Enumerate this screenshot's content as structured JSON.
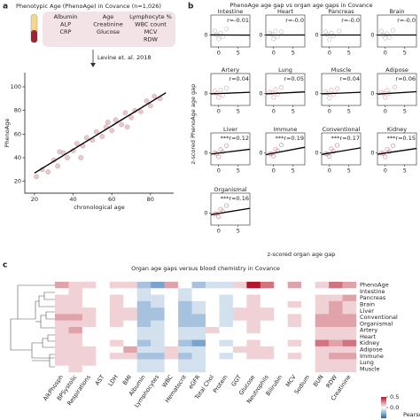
{
  "chart_data": [
    {
      "type": "scatter",
      "panel": "a",
      "title": "Phenotypic Age (PhenoAge) in Covance (n=1,026)",
      "inputs": [
        [
          "Albumin",
          "ALP",
          "CRP"
        ],
        [
          "Age",
          "Creatinine",
          "Glucose"
        ],
        [
          "Lymphocyte %",
          "WBC count",
          "MCV",
          "RDW"
        ]
      ],
      "method": "Levine et. al. 2018",
      "xlabel": "chronological age",
      "ylabel": "PhenoAge",
      "xlim": [
        15,
        92
      ],
      "ylim": [
        10,
        112
      ],
      "xticks": [
        20,
        40,
        60,
        80
      ],
      "yticks": [
        20,
        40,
        60,
        80,
        100
      ],
      "color": "#d9a5aa",
      "x": [
        21,
        24,
        27,
        30,
        32,
        35,
        37,
        40,
        42,
        45,
        47,
        50,
        52,
        55,
        57,
        60,
        62,
        65,
        67,
        70,
        72,
        75,
        78,
        80,
        82,
        85,
        33,
        44,
        58,
        68
      ],
      "y": [
        24,
        30,
        28,
        38,
        33,
        44,
        40,
        46,
        52,
        50,
        57,
        55,
        62,
        58,
        66,
        63,
        72,
        68,
        78,
        74,
        80,
        79,
        88,
        84,
        92,
        90,
        45,
        40,
        70,
        66
      ],
      "fit": {
        "x": [
          20,
          88
        ],
        "y": [
          27,
          95
        ]
      }
    },
    {
      "type": "scatter_grid",
      "panel": "b",
      "title": "PhenoAge age gap vs organ age gaps in Covance",
      "xlabel": "z-scored organ age gap",
      "ylabel": "z-scored PhenoAge age gap",
      "xlim": [
        -2,
        8
      ],
      "ylim": [
        -3,
        5
      ],
      "xticks": [
        0,
        5
      ],
      "yticks": [
        0
      ],
      "panels": [
        {
          "name": "Intestine",
          "r": "r=-0.01",
          "color": "#bbbbbb",
          "x": [
            -1,
            0,
            0.5,
            1,
            2,
            -0.5
          ],
          "y": [
            1,
            -1,
            0.5,
            -0.5,
            1.5,
            0
          ],
          "fit": [
            0.01,
            -0.02
          ]
        },
        {
          "name": "Heart",
          "r": "r=-0.0",
          "color": "#bbbbbb",
          "x": [
            -1,
            0,
            0.5,
            1,
            2,
            -0.5
          ],
          "y": [
            0.5,
            -1,
            1,
            -0.5,
            0.8,
            0.2
          ],
          "fit": [
            0,
            0
          ]
        },
        {
          "name": "Pancreas",
          "r": "r=-0.0",
          "color": "#bbbbbb",
          "x": [
            -1,
            0,
            0.5,
            1,
            2.5,
            -0.5
          ],
          "y": [
            0.8,
            -1.2,
            0.5,
            -0.3,
            1,
            0.1
          ],
          "fit": [
            0,
            0
          ]
        },
        {
          "name": "Brain",
          "r": "r=-0.0",
          "color": "#bbbbbb",
          "x": [
            -1,
            0,
            0.5,
            1,
            2,
            -0.5
          ],
          "y": [
            1,
            -0.8,
            0.3,
            -0.6,
            1.2,
            0
          ],
          "fit": [
            0,
            0
          ]
        },
        {
          "name": "Artery",
          "r": "r=0.04",
          "color": "#d4a5a8",
          "x": [
            -1,
            0,
            0.5,
            1,
            2,
            -0.5
          ],
          "y": [
            0.6,
            -1,
            0.8,
            -0.4,
            1.4,
            0
          ],
          "fit": [
            -0.1,
            0.3
          ]
        },
        {
          "name": "Lung",
          "r": "r=0.05",
          "color": "#d4a5a8",
          "x": [
            -1,
            0,
            0.5,
            1,
            2,
            -0.5
          ],
          "y": [
            0.4,
            -1,
            1,
            -0.2,
            1.5,
            0.2
          ],
          "fit": [
            -0.1,
            0.4
          ]
        },
        {
          "name": "Muscle",
          "r": "r=0.04",
          "color": "#d4a5a8",
          "x": [
            -1,
            0,
            0.5,
            1,
            2,
            -0.5
          ],
          "y": [
            0.5,
            -1.2,
            0.9,
            -0.3,
            1.2,
            0
          ],
          "fit": [
            -0.1,
            0.3
          ]
        },
        {
          "name": "Adipose",
          "r": "r=0.06",
          "color": "#d4a5a8",
          "x": [
            -1,
            0,
            0.5,
            1,
            2.5,
            -0.5
          ],
          "y": [
            0.3,
            -1,
            0.8,
            0,
            1.6,
            0.1
          ],
          "fit": [
            -0.15,
            0.45
          ]
        },
        {
          "name": "Liver",
          "r": "***r=0.12",
          "color": "#c98088",
          "x": [
            -1,
            0,
            0.5,
            1,
            2,
            -0.5
          ],
          "y": [
            0,
            -1,
            0.8,
            0.2,
            1.8,
            -0.2
          ],
          "fit": [
            -0.3,
            0.9
          ]
        },
        {
          "name": "Immune",
          "r": "***r=0.19",
          "color": "#c98088",
          "x": [
            -1,
            0,
            0.5,
            1,
            2,
            -0.5
          ],
          "y": [
            -0.3,
            -0.8,
            0.9,
            0.5,
            2,
            -0.2
          ],
          "fit": [
            -0.45,
            1.4
          ]
        },
        {
          "name": "Conventional",
          "r": "***r=0.17",
          "color": "#c98088",
          "x": [
            -1,
            0,
            0.5,
            1,
            2,
            -0.5
          ],
          "y": [
            -0.2,
            -0.9,
            1,
            0.4,
            1.9,
            -0.3
          ],
          "fit": [
            -0.4,
            1.25
          ]
        },
        {
          "name": "Kidney",
          "r": "***r=0.15",
          "color": "#c98088",
          "x": [
            -1,
            0,
            0.5,
            1,
            2,
            -0.5
          ],
          "y": [
            -0.1,
            -1,
            0.9,
            0.3,
            1.8,
            -0.1
          ],
          "fit": [
            -0.35,
            1.1
          ]
        },
        {
          "name": "Organismal",
          "r": "***r=0.16",
          "color": "#c98088",
          "x": [
            -1,
            0,
            0.5,
            1,
            2,
            -0.5
          ],
          "y": [
            -0.2,
            -0.9,
            0.9,
            0.4,
            1.9,
            -0.2
          ],
          "fit": [
            -0.4,
            1.2
          ]
        }
      ]
    },
    {
      "type": "heatmap",
      "panel": "c",
      "title": "Organ age gaps versus blood chemistry in Covance",
      "categories": [
        "AlkPhosph",
        "BPSystolic",
        "Respirations",
        "AST",
        "LDH",
        "BMI",
        "Albumin",
        "Lymphocytes",
        "WBC",
        "Hematocrit",
        "eGFR",
        "Total Chol",
        "Protein",
        "GGT",
        "Glucose",
        "Neutrophils",
        "Bilirubin",
        "MCV",
        "Sodium",
        "BUN",
        "RDW",
        "Creatinine"
      ],
      "colorbar_label": "Pearson r",
      "vlim": [
        -0.5,
        0.5
      ],
      "cticks": [
        0.5,
        {
          "value": 0,
          "label": "0.0"
        }
      ],
      "series": [
        {
          "name": "PhenoAge",
          "values": [
            0.2,
            0.1,
            0.1,
            0.0,
            0.1,
            0.1,
            -0.2,
            -0.3,
            0.2,
            0.0,
            -0.2,
            -0.1,
            -0.1,
            0.1,
            0.5,
            0.3,
            0.0,
            0.2,
            0.0,
            0.1,
            0.3,
            0.2
          ]
        },
        {
          "name": "Intestine",
          "values": [
            0.0,
            0.1,
            0.0,
            0.0,
            0.0,
            0.0,
            -0.1,
            0.0,
            0.0,
            -0.1,
            0.0,
            0.0,
            0.0,
            0.0,
            0.0,
            0.0,
            0.0,
            0.0,
            0.0,
            0.0,
            0.0,
            0.0
          ]
        },
        {
          "name": "Pancreas",
          "values": [
            0.1,
            0.1,
            0.0,
            0.0,
            0.1,
            0.0,
            -0.1,
            -0.1,
            0.0,
            -0.1,
            0.0,
            0.0,
            -0.1,
            0.0,
            0.1,
            0.0,
            0.0,
            0.0,
            0.0,
            0.1,
            0.1,
            0.2
          ]
        },
        {
          "name": "Brain",
          "values": [
            0.1,
            0.1,
            0.0,
            0.0,
            0.1,
            0.0,
            -0.2,
            -0.1,
            0.0,
            -0.2,
            -0.1,
            0.0,
            -0.1,
            0.0,
            0.1,
            0.0,
            0.0,
            0.1,
            0.0,
            0.1,
            0.2,
            0.1
          ]
        },
        {
          "name": "Liver",
          "values": [
            0.1,
            0.1,
            0.1,
            0.0,
            0.1,
            0.1,
            -0.2,
            -0.2,
            0.0,
            -0.2,
            -0.1,
            0.0,
            -0.1,
            0.1,
            0.1,
            0.1,
            0.0,
            0.0,
            0.0,
            0.1,
            0.2,
            0.1
          ]
        },
        {
          "name": "Conventional",
          "values": [
            0.2,
            0.2,
            0.1,
            0.0,
            0.1,
            0.1,
            -0.2,
            -0.2,
            0.0,
            -0.2,
            -0.2,
            0.0,
            -0.1,
            0.1,
            0.1,
            0.1,
            0.0,
            0.1,
            0.0,
            0.2,
            0.2,
            0.2
          ]
        },
        {
          "name": "Organismal",
          "values": [
            0.1,
            0.1,
            0.1,
            0.0,
            0.1,
            0.0,
            -0.2,
            -0.1,
            0.0,
            -0.2,
            -0.2,
            0.0,
            -0.1,
            0.0,
            0.1,
            0.0,
            0.0,
            0.1,
            0.0,
            0.2,
            0.2,
            0.2
          ]
        },
        {
          "name": "Artery",
          "values": [
            0.1,
            0.2,
            0.0,
            0.0,
            0.0,
            0.0,
            -0.1,
            -0.1,
            0.0,
            -0.1,
            -0.1,
            0.1,
            0.0,
            0.0,
            0.1,
            0.0,
            0.0,
            0.0,
            0.0,
            0.1,
            0.1,
            0.1
          ]
        },
        {
          "name": "Heart",
          "values": [
            0.1,
            0.1,
            0.0,
            0.0,
            0.0,
            0.0,
            -0.1,
            -0.1,
            0.0,
            -0.1,
            -0.1,
            0.0,
            0.0,
            0.0,
            0.0,
            0.0,
            0.0,
            0.0,
            0.0,
            0.1,
            0.1,
            0.1
          ]
        },
        {
          "name": "Kidney",
          "values": [
            0.1,
            0.1,
            0.0,
            0.0,
            0.1,
            0.0,
            -0.2,
            -0.1,
            0.0,
            -0.2,
            -0.3,
            0.0,
            -0.1,
            0.0,
            0.1,
            0.0,
            0.0,
            0.1,
            0.0,
            0.3,
            0.2,
            0.3
          ]
        },
        {
          "name": "Adipose",
          "values": [
            0.1,
            0.1,
            0.1,
            0.0,
            0.0,
            0.2,
            -0.1,
            -0.1,
            0.1,
            -0.1,
            -0.1,
            0.0,
            0.0,
            0.1,
            0.1,
            0.1,
            0.0,
            0.0,
            0.0,
            0.1,
            0.1,
            0.1
          ]
        },
        {
          "name": "Immune",
          "values": [
            0.1,
            0.1,
            0.1,
            0.0,
            0.1,
            0.1,
            -0.2,
            -0.2,
            0.1,
            -0.2,
            -0.1,
            0.0,
            -0.1,
            0.0,
            0.1,
            0.1,
            0.0,
            0.1,
            0.0,
            0.1,
            0.2,
            0.2
          ]
        },
        {
          "name": "Lung",
          "values": [
            0.1,
            0.1,
            0.1,
            0.0,
            0.0,
            0.0,
            -0.1,
            -0.1,
            0.0,
            -0.1,
            -0.1,
            0.0,
            0.0,
            0.0,
            0.0,
            0.0,
            0.0,
            0.0,
            0.0,
            0.1,
            0.1,
            0.1
          ]
        },
        {
          "name": "Muscle",
          "values": [
            0.0,
            0.1,
            0.0,
            0.0,
            0.0,
            0.0,
            -0.1,
            -0.1,
            0.0,
            -0.1,
            -0.1,
            0.0,
            0.0,
            0.0,
            0.0,
            0.0,
            0.0,
            0.0,
            0.0,
            0.1,
            0.1,
            0.1
          ]
        }
      ]
    }
  ]
}
